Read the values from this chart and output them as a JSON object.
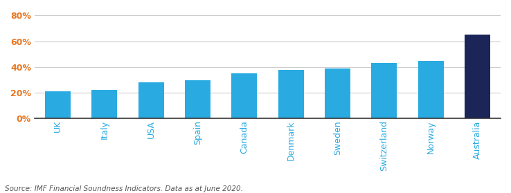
{
  "categories": [
    "UK",
    "Italy",
    "USA",
    "Spain",
    "Canada",
    "Denmark",
    "Sweden",
    "Switzerland",
    "Norway",
    "Australia"
  ],
  "values": [
    0.21,
    0.22,
    0.28,
    0.3,
    0.35,
    0.38,
    0.39,
    0.43,
    0.45,
    0.65
  ],
  "bar_colors": [
    "#29ABE2",
    "#29ABE2",
    "#29ABE2",
    "#29ABE2",
    "#29ABE2",
    "#29ABE2",
    "#29ABE2",
    "#29ABE2",
    "#29ABE2",
    "#1B2558"
  ],
  "ylim": [
    0,
    0.84
  ],
  "yticks": [
    0.0,
    0.2,
    0.4,
    0.6,
    0.8
  ],
  "ytick_labels": [
    "0%",
    "20%",
    "40%",
    "60%",
    "80%"
  ],
  "source_text": "Source: IMF Financial Soundness Indicators. Data as at June 2020.",
  "background_color": "#ffffff",
  "grid_color": "#cccccc",
  "source_fontsize": 7.5,
  "tick_fontsize": 9,
  "xtick_color": "#29ABE2",
  "ytick_color": "#E87722",
  "bar_width": 0.55
}
